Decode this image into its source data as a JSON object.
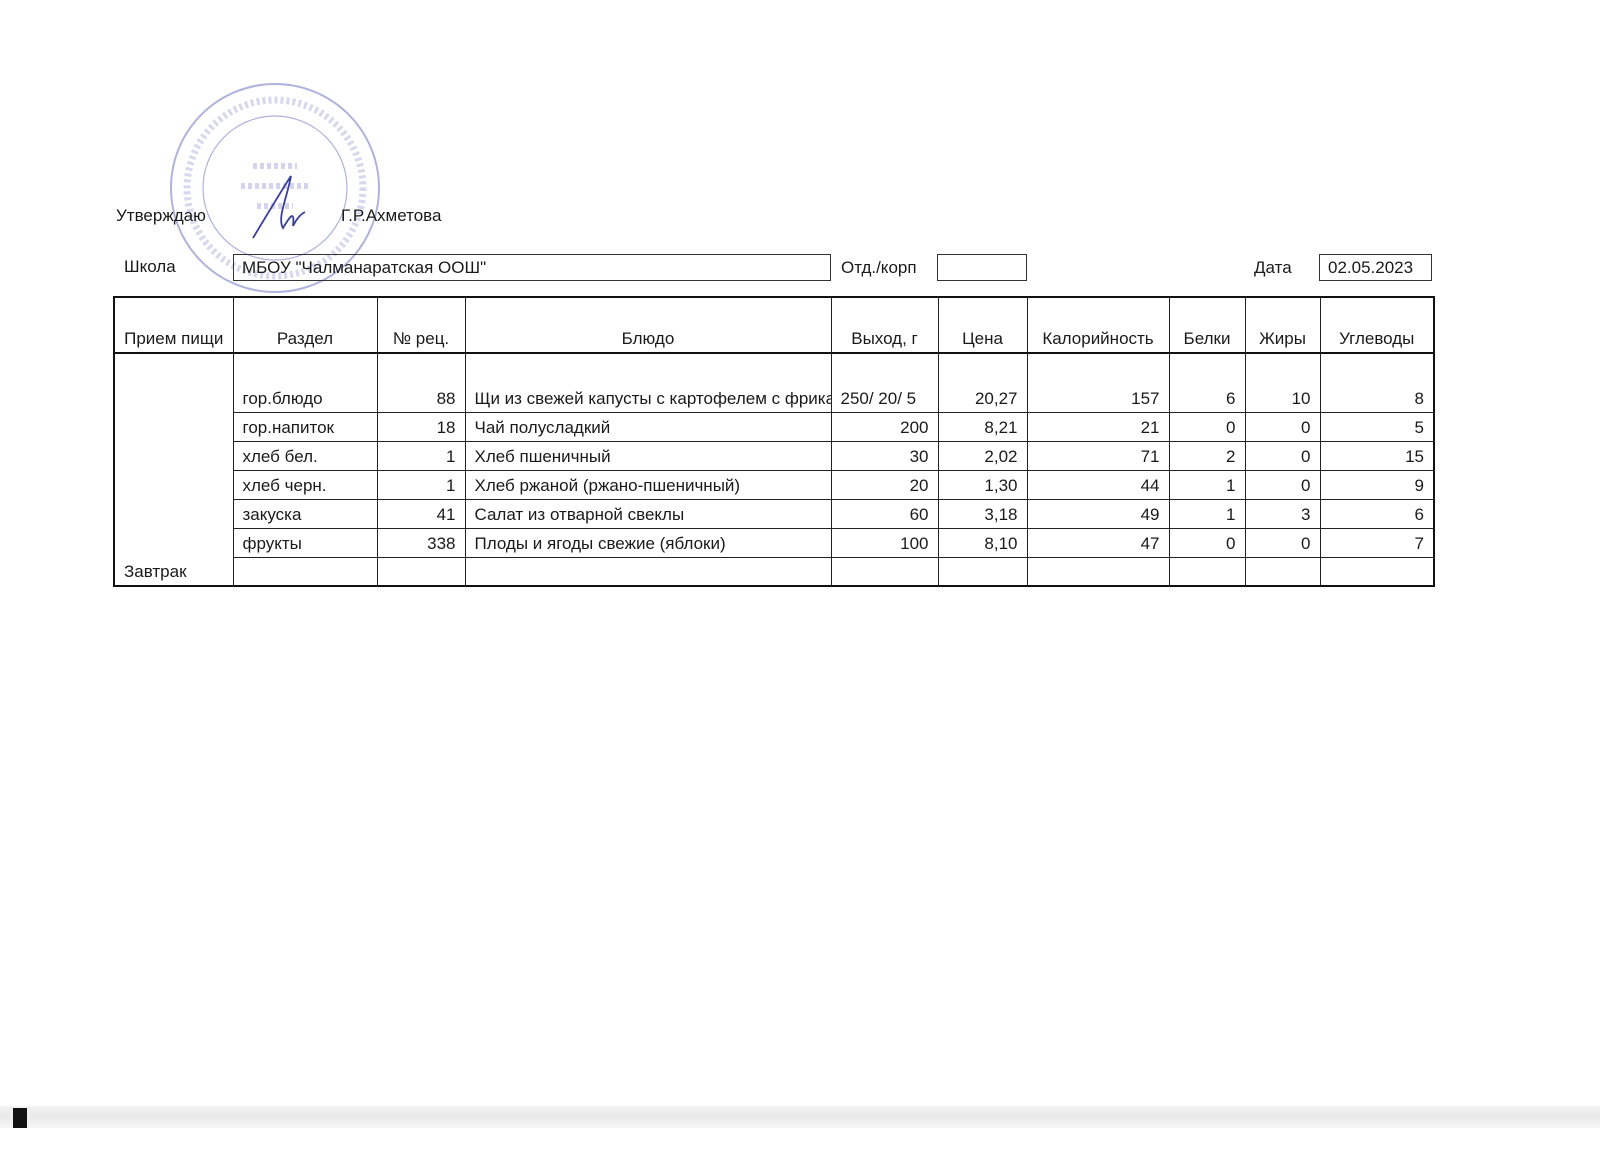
{
  "header": {
    "approve_label": "Утверждаю",
    "approver_name": "Г.Р.Ахметова",
    "school_label": "Школа",
    "school_value": "МБОУ \"Чалманаратская ООШ\"",
    "department_label": "Отд./корп",
    "department_value": "",
    "date_label": "Дата",
    "date_value": "02.05.2023"
  },
  "stamp": {
    "text_center": [
      "МБОУ",
      "«Чалманаратская",
      "ООШ»"
    ],
    "text_ring": "ОБРАЗОВАТЕЛЬНОЕ УЧРЕЖДЕНИЕ «ОСНОВНАЯ ОБЩЕОБРАЗОВАТЕЛЬНАЯ ШКОЛА» АКТАНЫШСКОГО ОГРН 1031633",
    "color": "#6a6fc0"
  },
  "table": {
    "columns": [
      "Прием пищи",
      "Раздел",
      "№ рец.",
      "Блюдо",
      "Выход, г",
      "Цена",
      "Калорийность",
      "Белки",
      "Жиры",
      "Углеводы"
    ],
    "meal": "Завтрак",
    "rows": [
      {
        "section": "гор.блюдо",
        "recipe": "88",
        "dish": "Щи из свежей капусты с картофелем с фрикадельками со сметаной",
        "yield": "250/   20/ 5",
        "price": "20,27",
        "calories": "157",
        "protein": "6",
        "fat": "10",
        "carbs": "8"
      },
      {
        "section": "гор.напиток",
        "recipe": "18",
        "dish": "Чай полусладкий",
        "yield": "200",
        "price": "8,21",
        "calories": "21",
        "protein": "0",
        "fat": "0",
        "carbs": "5"
      },
      {
        "section": "хлеб бел.",
        "recipe": "1",
        "dish": "Хлеб пшеничный",
        "yield": "30",
        "price": "2,02",
        "calories": "71",
        "protein": "2",
        "fat": "0",
        "carbs": "15"
      },
      {
        "section": "хлеб черн.",
        "recipe": "1",
        "dish": "Хлеб ржаной (ржано-пшеничный)",
        "yield": "20",
        "price": "1,30",
        "calories": "44",
        "protein": "1",
        "fat": "0",
        "carbs": "9"
      },
      {
        "section": "закуска",
        "recipe": "41",
        "dish": "Салат из отварной свеклы",
        "yield": "60",
        "price": "3,18",
        "calories": "49",
        "protein": "1",
        "fat": "3",
        "carbs": "6"
      },
      {
        "section": "фрукты",
        "recipe": "338",
        "dish": "Плоды и ягоды свежие (яблоки)",
        "yield": "100",
        "price": "8,10",
        "calories": "47",
        "protein": "0",
        "fat": "0",
        "carbs": "7"
      }
    ]
  }
}
